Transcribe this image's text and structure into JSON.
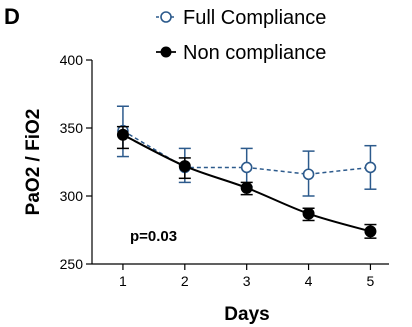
{
  "panel_label": "D",
  "chart_data": {
    "type": "line",
    "xlabel": "Days",
    "ylabel": "PaO2 / FiO2",
    "x": [
      1,
      2,
      3,
      4,
      5
    ],
    "x_ticks": [
      "1",
      "2",
      "3",
      "4",
      "5"
    ],
    "y_ticks": [
      "250",
      "300",
      "350",
      "400"
    ],
    "ylim": [
      250,
      400
    ],
    "xlim": [
      0.5,
      5.3
    ],
    "grid": false,
    "legend_placement": "top",
    "series": [
      {
        "name": "Full Compliance",
        "values": [
          348,
          321,
          321,
          316,
          321
        ],
        "err_low": [
          329,
          310,
          307,
          300,
          305
        ],
        "err_high": [
          366,
          335,
          335,
          333,
          337
        ],
        "color": "#2c5a8c",
        "marker": "open-circle",
        "line_style": "dashed"
      },
      {
        "name": "Non compliance",
        "values": [
          345,
          322,
          306,
          287,
          274
        ],
        "err_low": [
          335,
          313,
          301,
          282,
          269
        ],
        "err_high": [
          351,
          328,
          310,
          291,
          279
        ],
        "color": "#000000",
        "marker": "filled-circle",
        "line_style": "solid"
      }
    ],
    "annotations": [
      "p=0.03"
    ]
  }
}
